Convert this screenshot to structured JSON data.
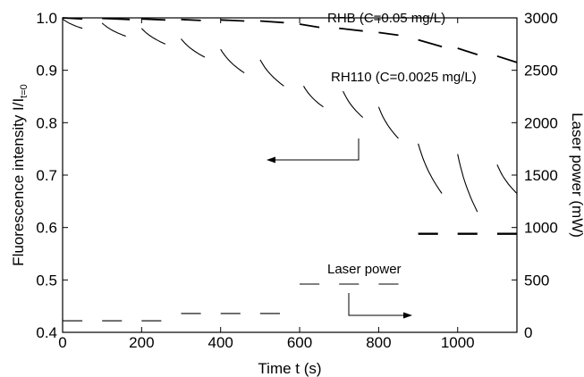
{
  "chart_data": {
    "type": "line",
    "xlabel": "Time t (s)",
    "ylabel_left": "Fluorescence intensity I/I",
    "ylabel_left_sub": "t=0",
    "ylabel_right": "Laser power (mW)",
    "xlim": [
      0,
      1150
    ],
    "ylim_left": [
      0.4,
      1.0
    ],
    "ylim_right": [
      0,
      3000
    ],
    "x_ticks": [
      0,
      200,
      400,
      600,
      800,
      1000
    ],
    "y_left_ticks": [
      0.4,
      0.5,
      0.6,
      0.7,
      0.8,
      0.9,
      1.0
    ],
    "y_right_ticks": [
      0,
      500,
      1000,
      1500,
      2000,
      2500,
      3000
    ],
    "x_tick_labels": [
      "0",
      "200",
      "400",
      "600",
      "800",
      "1000"
    ],
    "y_left_tick_labels": [
      "0.4",
      "0.5",
      "0.6",
      "0.7",
      "0.8",
      "0.9",
      "1.0"
    ],
    "y_right_tick_labels": [
      "0",
      "500",
      "1000",
      "1500",
      "2000",
      "2500",
      "3000"
    ],
    "grid": false,
    "annotations": [
      {
        "label": "RHB (C=0.05 mg/L)"
      },
      {
        "label": "RH110 (C=0.0025 mg/L)"
      },
      {
        "label": "Laser power"
      }
    ],
    "series": [
      {
        "axis": "left",
        "segments": [
          {
            "x": [
              0,
              50
            ],
            "y": [
              1.0,
              0.998
            ]
          },
          {
            "x": [
              100,
              170
            ],
            "y": [
              0.999,
              0.997
            ]
          },
          {
            "x": [
              200,
              260
            ],
            "y": [
              0.998,
              0.996
            ]
          },
          {
            "x": [
              300,
              350
            ],
            "y": [
              0.997,
              0.995
            ]
          },
          {
            "x": [
              400,
              460
            ],
            "y": [
              0.996,
              0.994
            ]
          },
          {
            "x": [
              500,
              560
            ],
            "y": [
              0.994,
              0.991
            ]
          },
          {
            "x": [
              600,
              650
            ],
            "y": [
              0.988,
              0.982
            ]
          },
          {
            "x": [
              700,
              760
            ],
            "y": [
              0.98,
              0.975
            ]
          },
          {
            "x": [
              800,
              850
            ],
            "y": [
              0.972,
              0.967
            ]
          },
          {
            "x": [
              900,
              960
            ],
            "y": [
              0.958,
              0.945
            ]
          },
          {
            "x": [
              1000,
              1050
            ],
            "y": [
              0.942,
              0.93
            ]
          },
          {
            "x": [
              1100,
              1150
            ],
            "y": [
              0.927,
              0.915
            ]
          }
        ]
      },
      {
        "axis": "left",
        "segments": [
          {
            "x": [
              0,
              50
            ],
            "y": [
              0.998,
              0.98
            ]
          },
          {
            "x": [
              100,
              160
            ],
            "y": [
              0.99,
              0.965
            ]
          },
          {
            "x": [
              200,
              260
            ],
            "y": [
              0.98,
              0.95
            ]
          },
          {
            "x": [
              300,
              360
            ],
            "y": [
              0.96,
              0.925
            ]
          },
          {
            "x": [
              400,
              460
            ],
            "y": [
              0.94,
              0.895
            ]
          },
          {
            "x": [
              500,
              560
            ],
            "y": [
              0.92,
              0.87
            ]
          },
          {
            "x": [
              610,
              660
            ],
            "y": [
              0.87,
              0.83
            ]
          },
          {
            "x": [
              710,
              760
            ],
            "y": [
              0.86,
              0.81
            ]
          },
          {
            "x": [
              800,
              850
            ],
            "y": [
              0.83,
              0.77
            ]
          },
          {
            "x": [
              900,
              960
            ],
            "y": [
              0.76,
              0.665
            ]
          },
          {
            "x": [
              1000,
              1050
            ],
            "y": [
              0.74,
              0.63
            ]
          },
          {
            "x": [
              1100,
              1150
            ],
            "y": [
              0.72,
              0.665
            ]
          }
        ]
      },
      {
        "axis": "right",
        "segments": [
          {
            "x": [
              0,
              50
            ],
            "y": [
              110,
              110
            ]
          },
          {
            "x": [
              100,
              150
            ],
            "y": [
              110,
              110
            ]
          },
          {
            "x": [
              200,
              250
            ],
            "y": [
              110,
              110
            ]
          },
          {
            "x": [
              300,
              350
            ],
            "y": [
              180,
              180
            ]
          },
          {
            "x": [
              400,
              450
            ],
            "y": [
              180,
              180
            ]
          },
          {
            "x": [
              500,
              550
            ],
            "y": [
              180,
              180
            ]
          },
          {
            "x": [
              600,
              650
            ],
            "y": [
              460,
              460
            ]
          },
          {
            "x": [
              700,
              750
            ],
            "y": [
              460,
              460
            ]
          },
          {
            "x": [
              800,
              850
            ],
            "y": [
              460,
              460
            ]
          },
          {
            "x": [
              900,
              950
            ],
            "y": [
              940,
              940
            ]
          },
          {
            "x": [
              1000,
              1050
            ],
            "y": [
              940,
              940
            ]
          },
          {
            "x": [
              1100,
              1150
            ],
            "y": [
              940,
              940
            ]
          }
        ]
      }
    ]
  }
}
